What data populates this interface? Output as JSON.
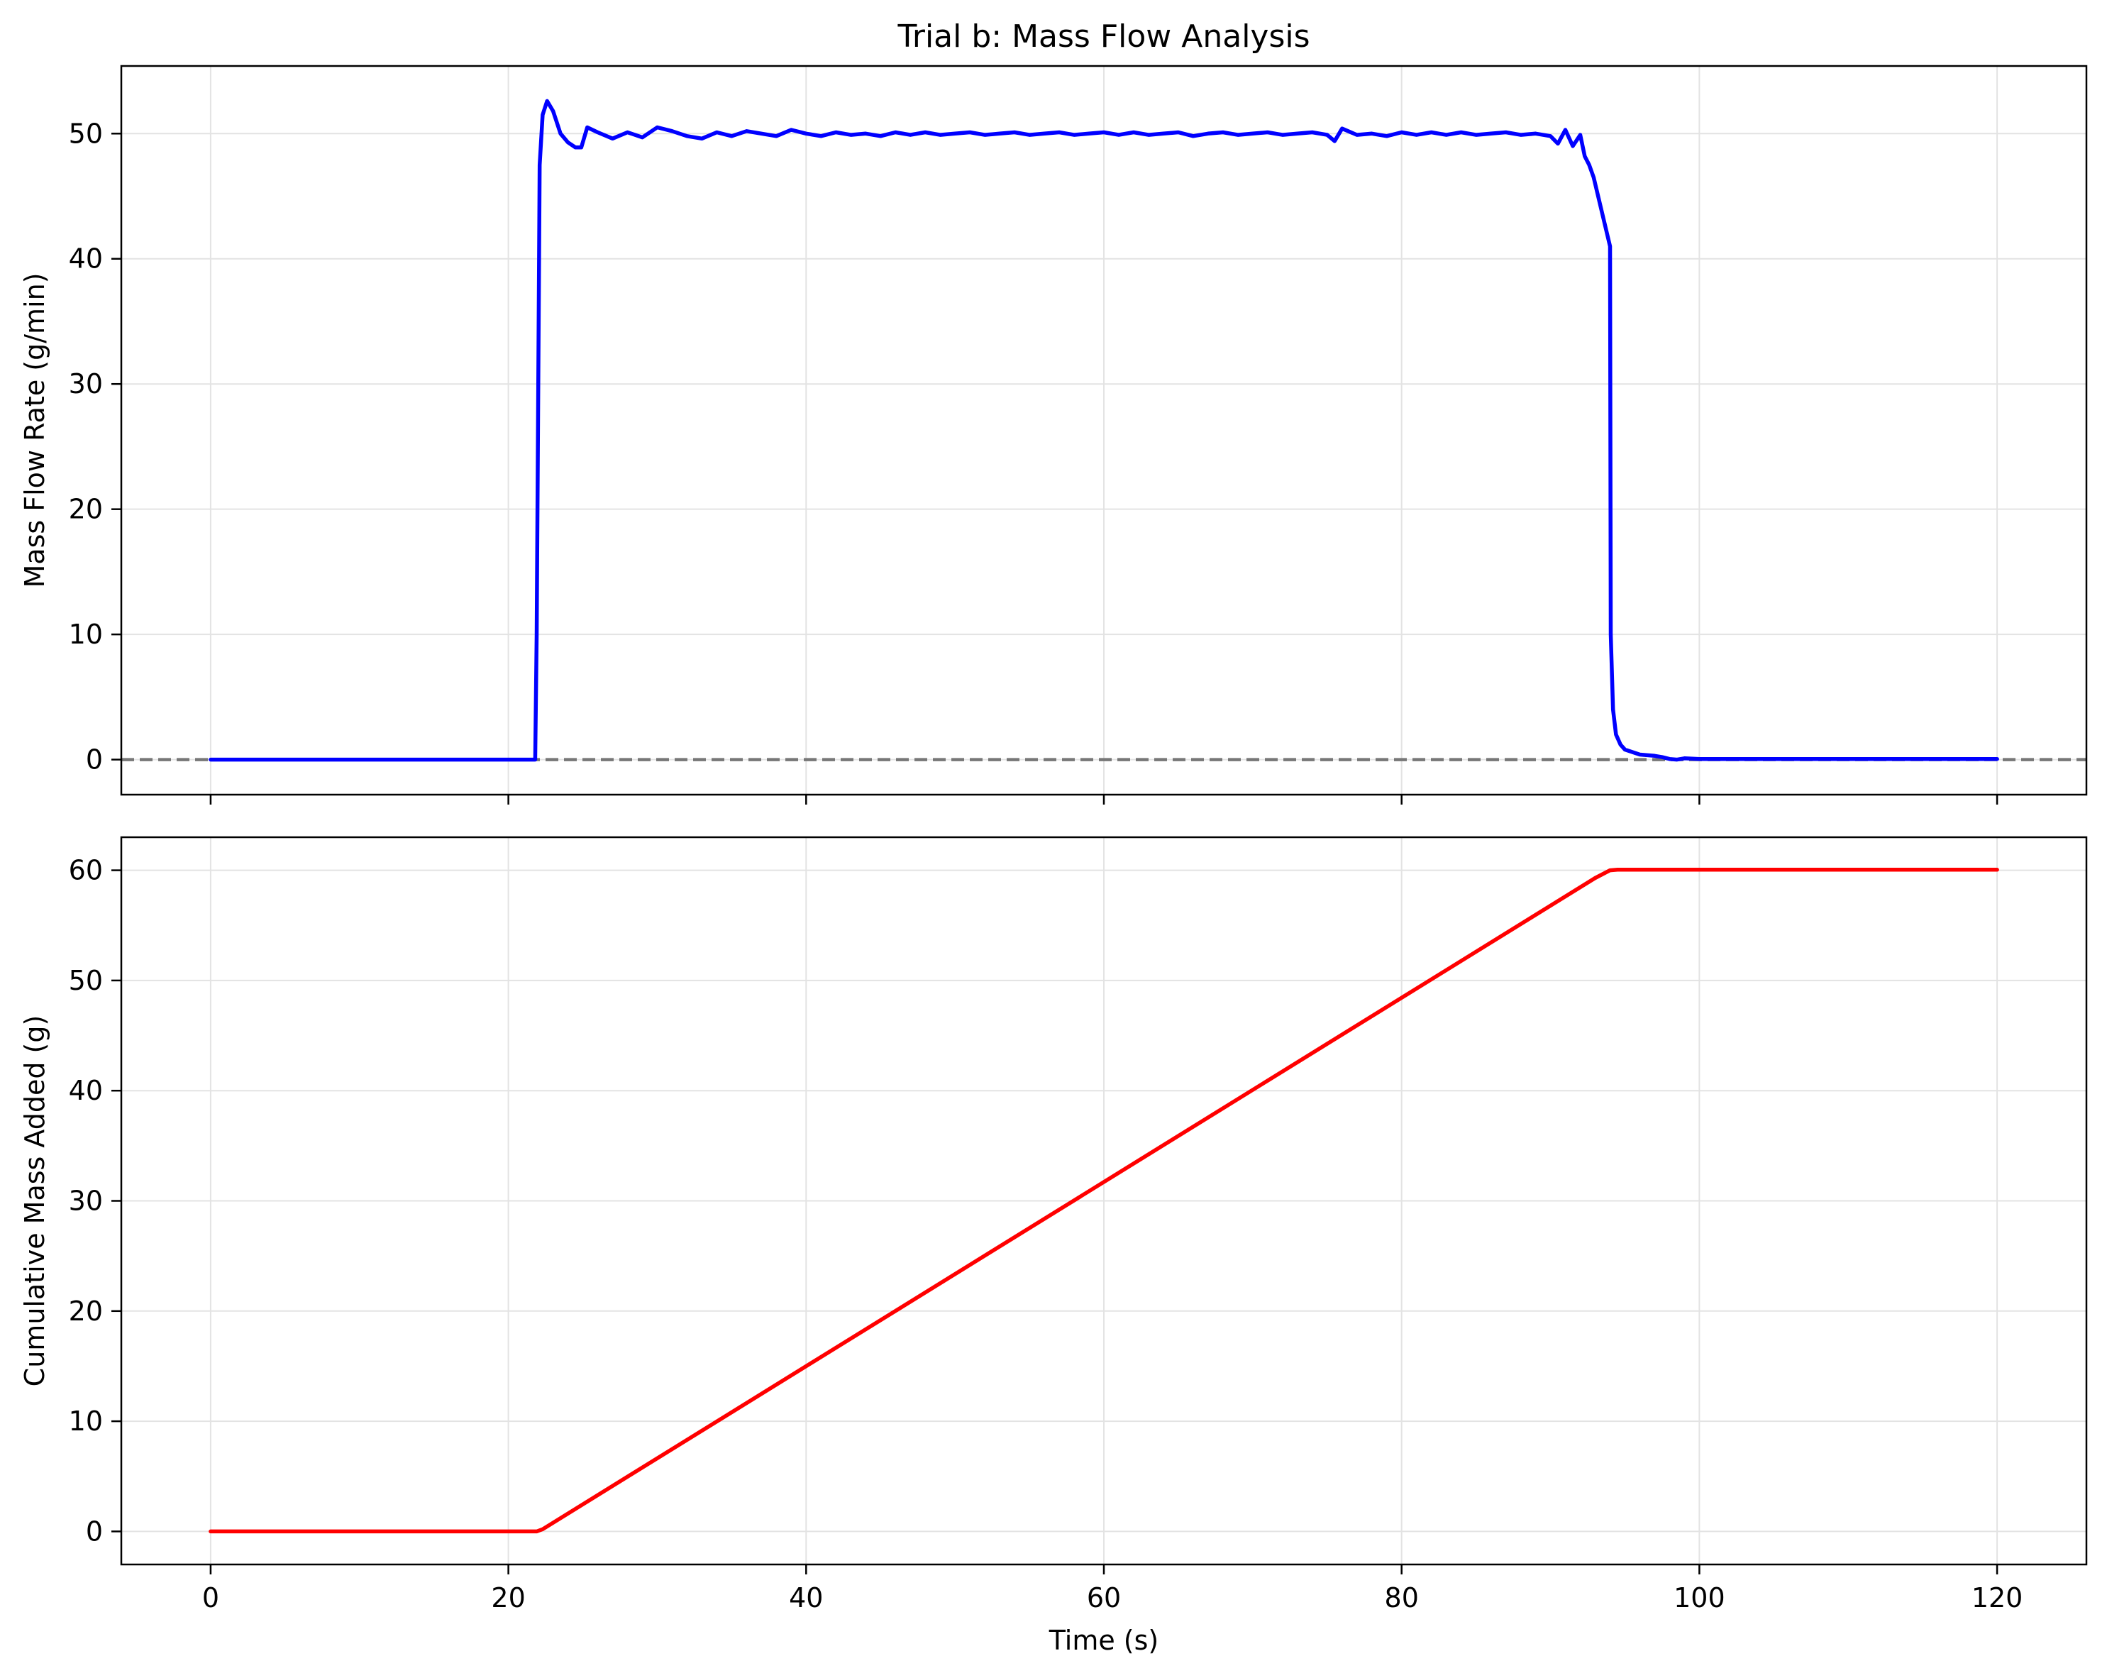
{
  "chart_data": [
    {
      "type": "line",
      "title": "Trial b: Mass Flow Analysis",
      "xlabel": "",
      "ylabel": "Mass Flow Rate (g/min)",
      "xlim": [
        -6,
        126
      ],
      "ylim": [
        -2.8,
        55.4
      ],
      "xticks": [
        0,
        20,
        40,
        60,
        80,
        100,
        120
      ],
      "yticks": [
        0,
        10,
        20,
        30,
        40,
        50
      ],
      "ytick_labels": [
        "0",
        "10",
        "20",
        "30",
        "40",
        "50"
      ],
      "grid": true,
      "reference_line": {
        "y": 0,
        "style": "dashed",
        "color": "#777777"
      },
      "series": [
        {
          "name": "Mass flow rate",
          "color": "#0000ff",
          "x": [
            0,
            5,
            10,
            15,
            21.8,
            21.9,
            22.1,
            22.3,
            22.6,
            23.0,
            23.5,
            24.0,
            24.5,
            24.9,
            25.3,
            26.0,
            27.0,
            28.0,
            29.0,
            30.0,
            31.0,
            32.0,
            33.0,
            34.0,
            35.0,
            36.0,
            37.0,
            38.0,
            39.0,
            40.0,
            41.0,
            42.0,
            43.0,
            44.0,
            45.0,
            46.0,
            47.0,
            48.0,
            49.0,
            50.0,
            51.0,
            52.0,
            53.0,
            54.0,
            55.0,
            56.0,
            57.0,
            58.0,
            59.0,
            60.0,
            61.0,
            62.0,
            63.0,
            64.0,
            65.0,
            66.0,
            67.0,
            68.0,
            69.0,
            70.0,
            71.0,
            72.0,
            73.0,
            74.0,
            75.0,
            75.5,
            76.0,
            77.0,
            78.0,
            79.0,
            80.0,
            81.0,
            82.0,
            83.0,
            84.0,
            85.0,
            86.0,
            87.0,
            88.0,
            89.0,
            90.0,
            90.5,
            91.0,
            91.5,
            92.0,
            92.3,
            92.6,
            92.9,
            93.2,
            93.5,
            93.8,
            94.0,
            94.05,
            94.2,
            94.4,
            94.7,
            95.0,
            95.5,
            96.0,
            96.5,
            97.0,
            97.5,
            98.0,
            98.5,
            99.0,
            100.0,
            105.0,
            110.0,
            115.0,
            120.0
          ],
          "y": [
            0,
            0,
            0,
            0,
            0,
            10,
            47.5,
            51.5,
            52.6,
            51.8,
            50.0,
            49.3,
            48.9,
            48.9,
            50.5,
            50.1,
            49.6,
            50.1,
            49.7,
            50.5,
            50.2,
            49.8,
            49.6,
            50.1,
            49.8,
            50.2,
            50.0,
            49.8,
            50.3,
            50.0,
            49.8,
            50.1,
            49.9,
            50.0,
            49.8,
            50.1,
            49.9,
            50.1,
            49.9,
            50.0,
            50.1,
            49.9,
            50.0,
            50.1,
            49.9,
            50.0,
            50.1,
            49.9,
            50.0,
            50.1,
            49.9,
            50.1,
            49.9,
            50.0,
            50.1,
            49.8,
            50.0,
            50.1,
            49.9,
            50.0,
            50.1,
            49.9,
            50.0,
            50.1,
            49.9,
            49.4,
            50.4,
            49.9,
            50.0,
            49.8,
            50.1,
            49.9,
            50.1,
            49.9,
            50.1,
            49.9,
            50.0,
            50.1,
            49.9,
            50.0,
            49.8,
            49.2,
            50.3,
            49.0,
            49.9,
            48.2,
            47.5,
            46.5,
            45.0,
            43.5,
            42.0,
            41.0,
            10.0,
            4.0,
            2.0,
            1.2,
            0.8,
            0.6,
            0.4,
            0.35,
            0.3,
            0.2,
            0.05,
            0.0,
            0.1,
            0.05,
            0.05,
            0.05,
            0.05,
            0.05
          ]
        }
      ]
    },
    {
      "type": "line",
      "title": "",
      "xlabel": "Time (s)",
      "ylabel": "Cumulative Mass Added (g)",
      "xlim": [
        -6,
        126
      ],
      "ylim": [
        -3.0,
        63.0
      ],
      "xticks": [
        0,
        20,
        40,
        60,
        80,
        100,
        120
      ],
      "xtick_labels": [
        "0",
        "20",
        "40",
        "60",
        "80",
        "100",
        "120"
      ],
      "yticks": [
        0,
        10,
        20,
        30,
        40,
        50,
        60
      ],
      "ytick_labels": [
        "0",
        "10",
        "20",
        "30",
        "40",
        "50",
        "60"
      ],
      "grid": true,
      "series": [
        {
          "name": "Cumulative mass",
          "color": "#ff0000",
          "x": [
            0,
            21.9,
            22.3,
            93.0,
            94.0,
            94.5,
            120.0
          ],
          "y": [
            0,
            0,
            0.2,
            59.3,
            60.0,
            60.05,
            60.05
          ]
        }
      ]
    }
  ]
}
